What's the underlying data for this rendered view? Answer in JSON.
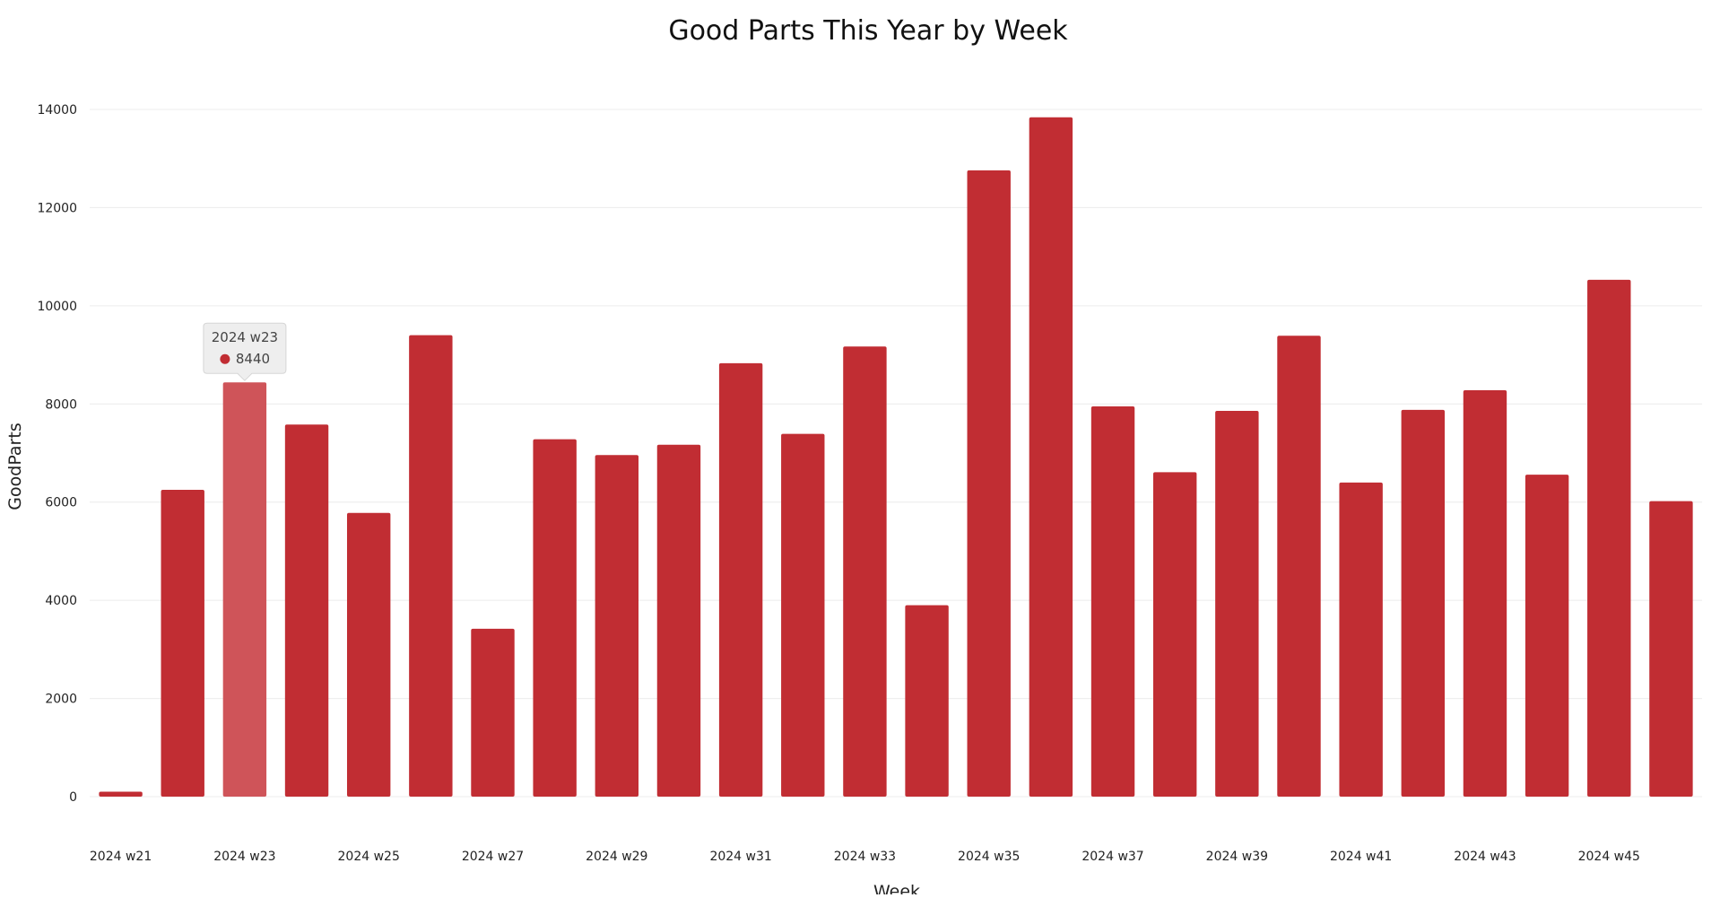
{
  "chart_data": {
    "type": "bar",
    "title": "Good Parts This Year by Week",
    "xlabel": "Week",
    "ylabel": "GoodParts",
    "ylim": [
      0,
      14000
    ],
    "yticks": [
      0,
      2000,
      4000,
      6000,
      8000,
      10000,
      12000,
      14000
    ],
    "grid": true,
    "legend": "none",
    "categories": [
      "2024 w21",
      "2024 w22",
      "2024 w23",
      "2024 w24",
      "2024 w25",
      "2024 w26",
      "2024 w27",
      "2024 w28",
      "2024 w29",
      "2024 w30",
      "2024 w31",
      "2024 w32",
      "2024 w33",
      "2024 w34",
      "2024 w35",
      "2024 w36",
      "2024 w37",
      "2024 w38",
      "2024 w39",
      "2024 w40",
      "2024 w41",
      "2024 w42",
      "2024 w43",
      "2024 w44",
      "2024 w45",
      "2024 w46"
    ],
    "tick_labels": [
      "2024 w21",
      "2024 w23",
      "2024 w25",
      "2024 w27",
      "2024 w29",
      "2024 w31",
      "2024 w33",
      "2024 w35",
      "2024 w37",
      "2024 w39",
      "2024 w41",
      "2024 w43",
      "2024 w45"
    ],
    "series": [
      {
        "values": [
          100,
          6250,
          8440,
          7580,
          5780,
          9400,
          3420,
          7280,
          6960,
          7170,
          8830,
          7390,
          9170,
          3900,
          12760,
          13840,
          7950,
          6610,
          7860,
          9390,
          6400,
          7880,
          8280,
          6560,
          10530,
          6020
        ],
        "color": "#c12d33"
      }
    ],
    "highlight_color": "#cf5459",
    "tooltip": {
      "category": "2024 w23",
      "value": "8440"
    }
  }
}
